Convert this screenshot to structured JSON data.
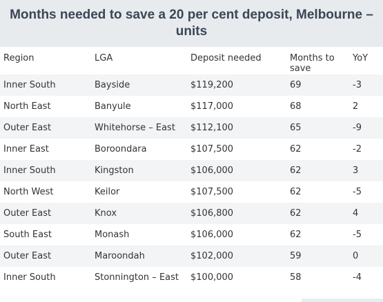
{
  "title": "Months needed to save a 20 per cent deposit, Melbourne – units",
  "columns": [
    "Region",
    "LGA",
    "Deposit needed",
    "Months to save",
    "YoY"
  ],
  "rows": [
    [
      "Inner South",
      "Bayside",
      "$119,200",
      "69",
      "-3"
    ],
    [
      "North East",
      "Banyule",
      "$117,000",
      "68",
      "2"
    ],
    [
      "Outer East",
      "Whitehorse – East",
      "$112,100",
      "65",
      "-9"
    ],
    [
      "Inner East",
      "Boroondara",
      "$107,500",
      "62",
      "-2"
    ],
    [
      "Inner South",
      "Kingston",
      "$106,000",
      "62",
      "3"
    ],
    [
      "North West",
      "Keilor",
      "$107,500",
      "62",
      "-5"
    ],
    [
      "Outer East",
      "Knox",
      "$106,800",
      "62",
      "4"
    ],
    [
      "South East",
      "Monash",
      "$106,000",
      "62",
      "-5"
    ],
    [
      "Outer East",
      "Maroondah",
      "$102,000",
      "59",
      "0"
    ],
    [
      "Inner South",
      "Stonnington – East",
      "$100,000",
      "58",
      "-4"
    ]
  ]
}
